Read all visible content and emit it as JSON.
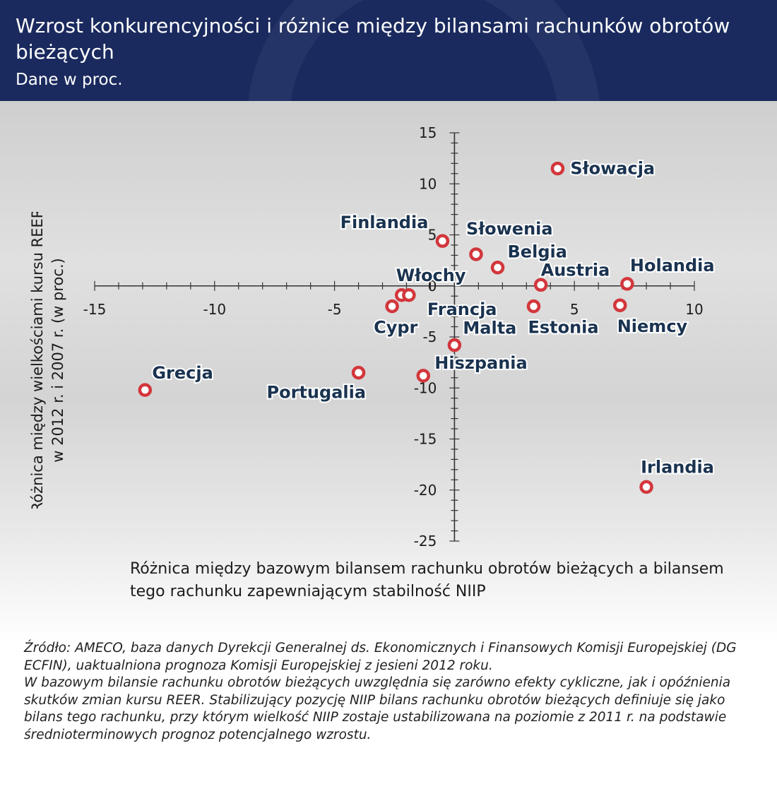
{
  "header": {
    "title": "Wzrost konkurencyjności i różnice między bilansami rachunków obrotów bieżących",
    "subtitle": "Dane w proc."
  },
  "colors": {
    "header_bg": "#1a2a5e",
    "marker": "#d2373c",
    "label": "#1a3350"
  },
  "chart_data": {
    "type": "scatter",
    "xlabel": "Różnica między bazowym bilansem rachunku obrotów bieżących a bilansem tego rachunku zapewniającym stabilność NIIP",
    "ylabel": "Różnica między wielkościami kursu REER w 2012 r. i 2007 r. (w proc.)",
    "xlim": [
      -15,
      10
    ],
    "ylim": [
      -25,
      15
    ],
    "x_ticks": [
      -15,
      -10,
      -5,
      5,
      10
    ],
    "y_ticks": [
      15,
      10,
      5,
      0,
      -5,
      -10,
      -15,
      -20,
      -25
    ],
    "grid": false,
    "points": [
      {
        "label": "Słowacja",
        "x": 4.3,
        "y": 11.5
      },
      {
        "label": "Finlandia",
        "x": -0.5,
        "y": 4.4
      },
      {
        "label": "Słowenia",
        "x": 0.9,
        "y": 3.1
      },
      {
        "label": "Belgia",
        "x": 1.8,
        "y": 1.8
      },
      {
        "label": "Austria",
        "x": 3.6,
        "y": 0.1
      },
      {
        "label": "Holandia",
        "x": 7.2,
        "y": 0.2
      },
      {
        "label": "Włochy",
        "x": -2.2,
        "y": -0.9
      },
      {
        "label": "Francja",
        "x": -1.9,
        "y": -0.9
      },
      {
        "label": "Cypr",
        "x": -2.6,
        "y": -2.0
      },
      {
        "label": "Estonia",
        "x": 3.3,
        "y": -2.0
      },
      {
        "label": "Niemcy",
        "x": 6.9,
        "y": -1.9
      },
      {
        "label": "Malta",
        "x": 0.0,
        "y": -5.8
      },
      {
        "label": "Hiszpania",
        "x": -1.3,
        "y": -8.8
      },
      {
        "label": "Grecja",
        "x": -12.9,
        "y": -10.2
      },
      {
        "label": "Portugalia",
        "x": -4.0,
        "y": -8.5
      },
      {
        "label": "Irlandia",
        "x": 8.0,
        "y": -19.7
      }
    ]
  },
  "footer": {
    "source": "Źródło: AMECO, baza danych Dyrekcji Generalnej ds. Ekonomicznych i Finansowych Komisji Europejskiej (DG ECFIN), uaktualniona prognoza Komisji Europejskiej z jesieni 2012 roku.",
    "note": "W bazowym bilansie rachunku obrotów bieżących uwzględnia się zarówno efekty cykliczne, jak i opóźnienia skutków zmian kursu REER. Stabilizujący pozycję NIIP bilans rachunku obrotów bieżących definiuje się jako bilans tego rachunku, przy którym wielkość NIIP zostaje ustabilizowana na poziomie z 2011 r. na podstawie średnioterminowych prognoz potencjalnego wzrostu."
  }
}
